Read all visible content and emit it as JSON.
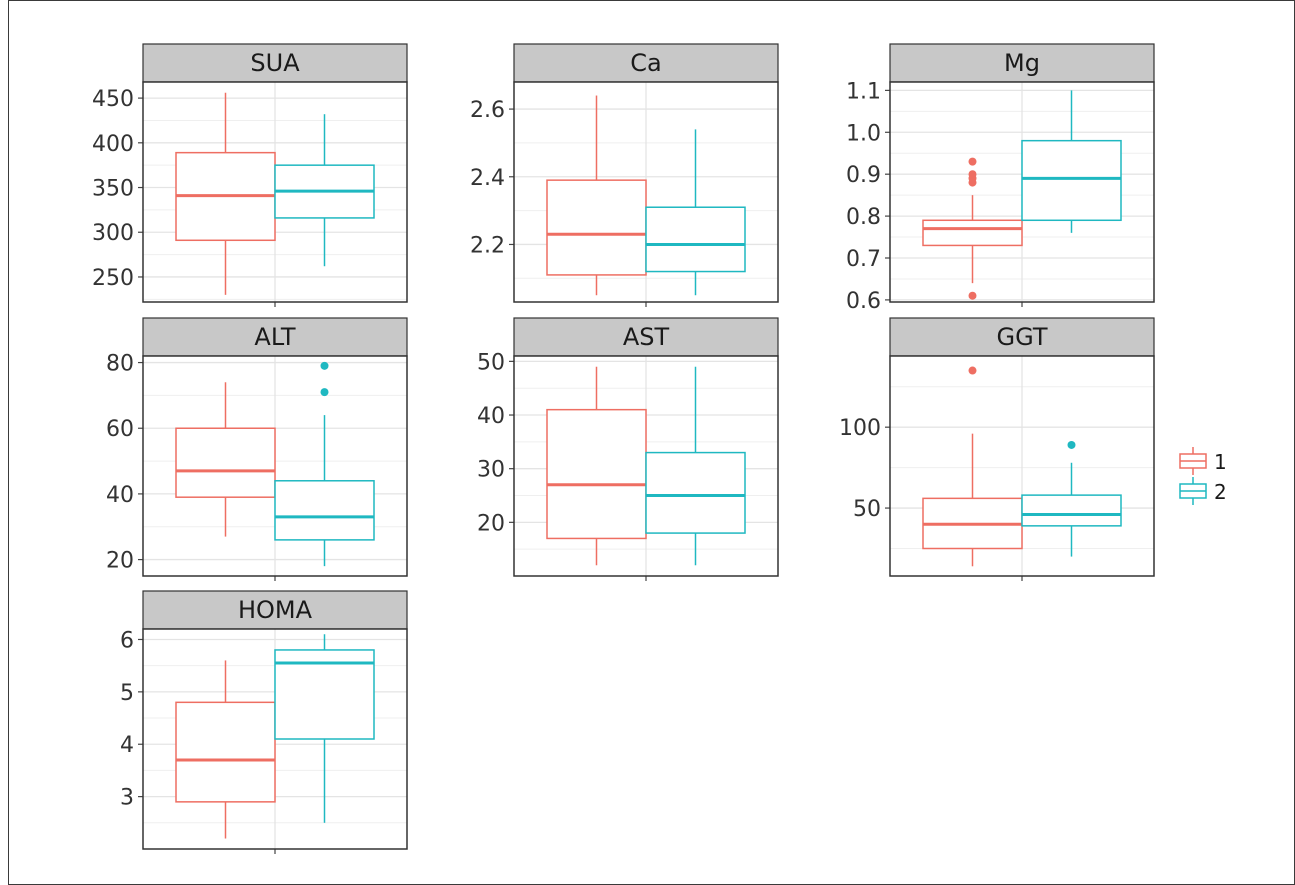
{
  "chart_data": {
    "type": "boxplot",
    "facet_layout": "3 columns",
    "legend": {
      "placement": "right",
      "entries": [
        "1",
        "2"
      ]
    },
    "colors": {
      "1": "#ee6e62",
      "2": "#1fb8c1",
      "strip": "#c8c8c8",
      "grid": "#e4e4e4"
    },
    "panels": [
      {
        "name": "SUA",
        "ylim": [
          222,
          468
        ],
        "ticks": [
          250,
          300,
          350,
          400,
          450
        ],
        "boxes": [
          {
            "group": "1",
            "lower_whisker": 230,
            "q1": 291,
            "median": 341,
            "q3": 389,
            "upper_whisker": 456,
            "outliers": []
          },
          {
            "group": "2",
            "lower_whisker": 262,
            "q1": 316,
            "median": 346,
            "q3": 375,
            "upper_whisker": 432,
            "outliers": []
          }
        ]
      },
      {
        "name": "Ca",
        "ylim": [
          2.03,
          2.68
        ],
        "ticks": [
          2.2,
          2.4,
          2.6
        ],
        "boxes": [
          {
            "group": "1",
            "lower_whisker": 2.05,
            "q1": 2.11,
            "median": 2.23,
            "q3": 2.39,
            "upper_whisker": 2.64,
            "outliers": []
          },
          {
            "group": "2",
            "lower_whisker": 2.05,
            "q1": 2.12,
            "median": 2.2,
            "q3": 2.31,
            "upper_whisker": 2.54,
            "outliers": []
          }
        ]
      },
      {
        "name": "Mg",
        "ylim": [
          0.595,
          1.12
        ],
        "ticks": [
          0.6,
          0.7,
          0.8,
          0.9,
          1.0,
          1.1
        ],
        "boxes": [
          {
            "group": "1",
            "lower_whisker": 0.64,
            "q1": 0.73,
            "median": 0.77,
            "q3": 0.79,
            "upper_whisker": 0.85,
            "outliers": [
              0.61,
              0.88,
              0.89,
              0.9,
              0.93
            ]
          },
          {
            "group": "2",
            "lower_whisker": 0.76,
            "q1": 0.79,
            "median": 0.89,
            "q3": 0.98,
            "upper_whisker": 1.1,
            "outliers": []
          }
        ]
      },
      {
        "name": "ALT",
        "ylim": [
          15,
          82
        ],
        "ticks": [
          20,
          40,
          60,
          80
        ],
        "boxes": [
          {
            "group": "1",
            "lower_whisker": 27,
            "q1": 39,
            "median": 47,
            "q3": 60,
            "upper_whisker": 74,
            "outliers": []
          },
          {
            "group": "2",
            "lower_whisker": 18,
            "q1": 26,
            "median": 33,
            "q3": 44,
            "upper_whisker": 64,
            "outliers": [
              71,
              79
            ]
          }
        ]
      },
      {
        "name": "AST",
        "ylim": [
          10,
          51
        ],
        "ticks": [
          20,
          30,
          40,
          50
        ],
        "boxes": [
          {
            "group": "1",
            "lower_whisker": 12,
            "q1": 17,
            "median": 27,
            "q3": 41,
            "upper_whisker": 49,
            "outliers": []
          },
          {
            "group": "2",
            "lower_whisker": 12,
            "q1": 18,
            "median": 25,
            "q3": 33,
            "upper_whisker": 49,
            "outliers": []
          }
        ]
      },
      {
        "name": "GGT",
        "ylim": [
          8,
          144
        ],
        "ticks": [
          50,
          100
        ],
        "boxes": [
          {
            "group": "1",
            "lower_whisker": 14,
            "q1": 25,
            "median": 40,
            "q3": 56,
            "upper_whisker": 96,
            "outliers": [
              135
            ]
          },
          {
            "group": "2",
            "lower_whisker": 20,
            "q1": 39,
            "median": 46,
            "q3": 58,
            "upper_whisker": 78,
            "outliers": [
              89
            ]
          }
        ]
      },
      {
        "name": "HOMA",
        "ylim": [
          2.0,
          6.2
        ],
        "ticks": [
          3,
          4,
          5,
          6
        ],
        "boxes": [
          {
            "group": "1",
            "lower_whisker": 2.2,
            "q1": 2.9,
            "median": 3.7,
            "q3": 4.8,
            "upper_whisker": 5.6,
            "outliers": []
          },
          {
            "group": "2",
            "lower_whisker": 2.5,
            "q1": 4.1,
            "median": 5.55,
            "q3": 5.8,
            "upper_whisker": 6.1,
            "outliers": []
          }
        ]
      }
    ]
  }
}
